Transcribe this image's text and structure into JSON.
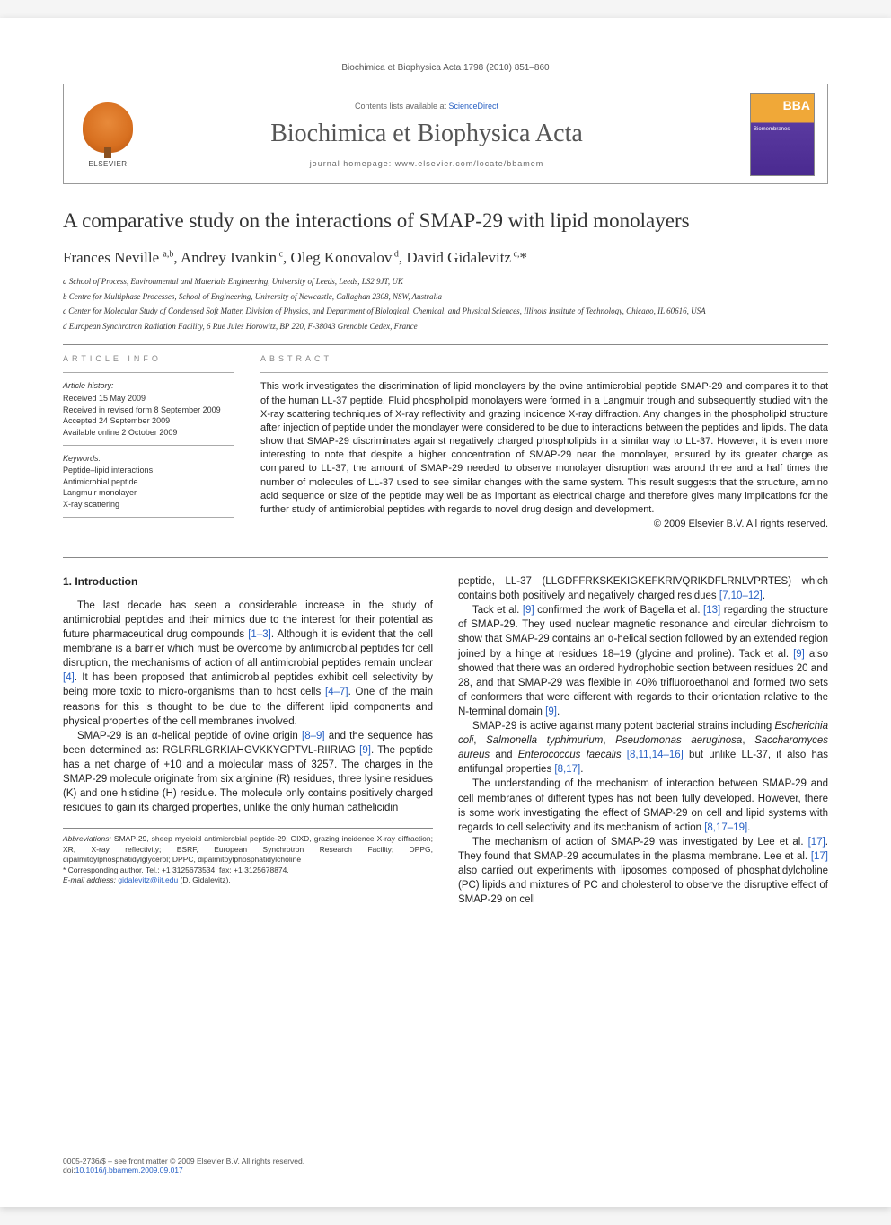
{
  "header": {
    "citation": "Biochimica et Biophysica Acta 1798 (2010) 851–860"
  },
  "banner": {
    "elsevier": "ELSEVIER",
    "contents_prefix": "Contents lists available at ",
    "contents_link": "ScienceDirect",
    "journal_title": "Biochimica et Biophysica Acta",
    "homepage_prefix": "journal homepage: ",
    "homepage_url": "www.elsevier.com/locate/bbamem",
    "cover_abbrev": "BBA",
    "cover_sub": "Biomembranes"
  },
  "article": {
    "title": "A comparative study on the interactions of SMAP-29 with lipid monolayers",
    "authors_html": "Frances Neville <sup>a,b</sup>, Andrey Ivankin<sup> c</sup>, Oleg Konovalov<sup> d</sup>, David Gidalevitz<sup> c,</sup>*",
    "affiliations": [
      "a  School of Process, Environmental and Materials Engineering, University of Leeds, Leeds, LS2 9JT, UK",
      "b  Centre for Multiphase Processes, School of Engineering, University of Newcastle, Callaghan 2308, NSW, Australia",
      "c  Center for Molecular Study of Condensed Soft Matter, Division of Physics, and Department of Biological, Chemical, and Physical Sciences, Illinois Institute of Technology, Chicago, IL 60616, USA",
      "d  European Synchrotron Radiation Facility, 6 Rue Jules Horowitz, BP 220, F-38043 Grenoble Cedex, France"
    ]
  },
  "info": {
    "label_info": "ARTICLE INFO",
    "label_abstract": "ABSTRACT",
    "history_label": "Article history:",
    "history": [
      "Received 15 May 2009",
      "Received in revised form 8 September 2009",
      "Accepted 24 September 2009",
      "Available online 2 October 2009"
    ],
    "keywords_label": "Keywords:",
    "keywords": [
      "Peptide–lipid interactions",
      "Antimicrobial peptide",
      "Langmuir monolayer",
      "X-ray scattering"
    ]
  },
  "abstract": {
    "text": "This work investigates the discrimination of lipid monolayers by the ovine antimicrobial peptide SMAP-29 and compares it to that of the human LL-37 peptide. Fluid phospholipid monolayers were formed in a Langmuir trough and subsequently studied with the X-ray scattering techniques of X-ray reflectivity and grazing incidence X-ray diffraction. Any changes in the phospholipid structure after injection of peptide under the monolayer were considered to be due to interactions between the peptides and lipids. The data show that SMAP-29 discriminates against negatively charged phospholipids in a similar way to LL-37. However, it is even more interesting to note that despite a higher concentration of SMAP-29 near the monolayer, ensured by its greater charge as compared to LL-37, the amount of SMAP-29 needed to observe monolayer disruption was around three and a half times the number of molecules of LL-37 used to see similar changes with the same system. This result suggests that the structure, amino acid sequence or size of the peptide may well be as important as electrical charge and therefore gives many implications for the further study of antimicrobial peptides with regards to novel drug design and development.",
    "copyright": "© 2009 Elsevier B.V. All rights reserved."
  },
  "body": {
    "section_heading": "1. Introduction",
    "left_paragraphs": [
      "The last decade has seen a considerable increase in the study of antimicrobial peptides and their mimics due to the interest for their potential as future pharmaceutical drug compounds [1–3]. Although it is evident that the cell membrane is a barrier which must be overcome by antimicrobial peptides for cell disruption, the mechanisms of action of all antimicrobial peptides remain unclear [4]. It has been proposed that antimicrobial peptides exhibit cell selectivity by being more toxic to micro-organisms than to host cells [4–7]. One of the main reasons for this is thought to be due to the different lipid components and physical properties of the cell membranes involved.",
      "SMAP-29 is an α-helical peptide of ovine origin [8–9] and the sequence has been determined as: RGLRRLGRKIAHGVKKYGPTVL-RIIRIAG [9]. The peptide has a net charge of +10 and a molecular mass of 3257. The charges in the SMAP-29 molecule originate from six arginine (R) residues, three lysine residues (K) and one histidine (H) residue. The molecule only contains positively charged residues to gain its charged properties, unlike the only human cathelicidin"
    ],
    "right_paragraphs": [
      "peptide, LL-37 (LLGDFFRKSKEKIGKEFKRIVQRIKDFLRNLVPRTES) which contains both positively and negatively charged residues [7,10–12].",
      "Tack et al. [9] confirmed the work of Bagella et al. [13] regarding the structure of SMAP-29. They used nuclear magnetic resonance and circular dichroism to show that SMAP-29 contains an α-helical section followed by an extended region joined by a hinge at residues 18–19 (glycine and proline). Tack et al. [9] also showed that there was an ordered hydrophobic section between residues 20 and 28, and that SMAP-29 was flexible in 40% trifluoroethanol and formed two sets of conformers that were different with regards to their orientation relative to the N-terminal domain [9].",
      "SMAP-29 is active against many potent bacterial strains including Escherichia coli, Salmonella typhimurium, Pseudomonas aeruginosa, Saccharomyces aureus and Enterococcus faecalis [8,11,14–16] but unlike LL-37, it also has antifungal properties [8,17].",
      "The understanding of the mechanism of interaction between SMAP-29 and cell membranes of different types has not been fully developed. However, there is some work investigating the effect of SMAP-29 on cell and lipid systems with regards to cell selectivity and its mechanism of action [8,17–19].",
      "The mechanism of action of SMAP-29 was investigated by Lee et al. [17]. They found that SMAP-29 accumulates in the plasma membrane. Lee et al. [17] also carried out experiments with liposomes composed of phosphatidylcholine (PC) lipids and mixtures of PC and cholesterol to observe the disruptive effect of SMAP-29 on cell"
    ]
  },
  "footnote": {
    "abbrev_label": "Abbreviations:",
    "abbrev_text": " SMAP-29, sheep myeloid antimicrobial peptide-29; GIXD, grazing incidence X-ray diffraction; XR, X-ray reflectivity; ESRF, European Synchrotron Research Facility; DPPG, dipalmitoylphosphatidylglycerol; DPPC, dipalmitoylphosphatidylcholine",
    "corresp": "* Corresponding author. Tel.: +1 3125673534; fax: +1 3125678874.",
    "email_label": "E-mail address: ",
    "email": "gidalevitz@iit.edu",
    "email_suffix": " (D. Gidalevitz)."
  },
  "footer": {
    "issn": "0005-2736/$ – see front matter © 2009 Elsevier B.V. All rights reserved.",
    "doi_label": "doi:",
    "doi": "10.1016/j.bbamem.2009.09.017"
  },
  "colors": {
    "link": "#2961c4",
    "text": "#222222",
    "border": "#888888"
  }
}
